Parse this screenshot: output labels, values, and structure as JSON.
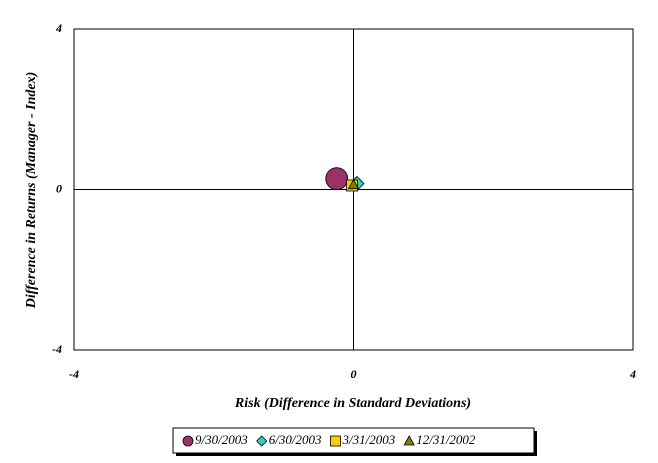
{
  "chart_data": {
    "type": "scatter",
    "x_label": "Risk (Difference in Standard Deviations)",
    "y_label": "Difference in Returns (Manager - Index)",
    "xlim": [
      -4,
      4
    ],
    "xticks": [
      -4,
      0,
      4
    ],
    "ylim": [
      -4,
      4
    ],
    "yticks": [
      -4,
      0,
      4
    ],
    "series": [
      {
        "name": "9/30/2003",
        "color": "#993366",
        "marker": "circle",
        "x": [
          -0.24
        ],
        "values": [
          0.27
        ]
      },
      {
        "name": "6/30/2003",
        "color": "#33cccc",
        "marker": "diamond",
        "x": [
          0.05
        ],
        "values": [
          0.15
        ]
      },
      {
        "name": "3/31/2003",
        "color": "#ffcc00",
        "marker": "square",
        "x": [
          -0.02
        ],
        "values": [
          0.1
        ]
      },
      {
        "name": "12/31/2002",
        "color": "#808000",
        "marker": "triangle",
        "x": [
          0.0
        ],
        "values": [
          0.12
        ]
      }
    ]
  }
}
